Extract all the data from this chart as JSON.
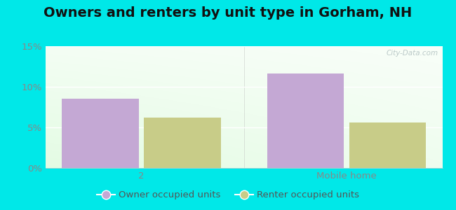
{
  "title": "Owners and renters by unit type in Gorham, NH",
  "categories": [
    "2",
    "Mobile home"
  ],
  "owner_values": [
    8.5,
    11.6
  ],
  "renter_values": [
    6.2,
    5.6
  ],
  "owner_color": "#c4a8d4",
  "renter_color": "#c8cc88",
  "owner_label": "Owner occupied units",
  "renter_label": "Renter occupied units",
  "ylim": [
    0,
    15
  ],
  "yticks": [
    0,
    5,
    10,
    15
  ],
  "yticklabels": [
    "0%",
    "5%",
    "10%",
    "15%"
  ],
  "bar_width": 0.28,
  "outer_bg": "#00e8e8",
  "watermark": "City-Data.com",
  "title_fontsize": 14,
  "tick_fontsize": 9.5,
  "legend_fontsize": 9.5,
  "tick_color": "#888888",
  "label_color": "#888888"
}
